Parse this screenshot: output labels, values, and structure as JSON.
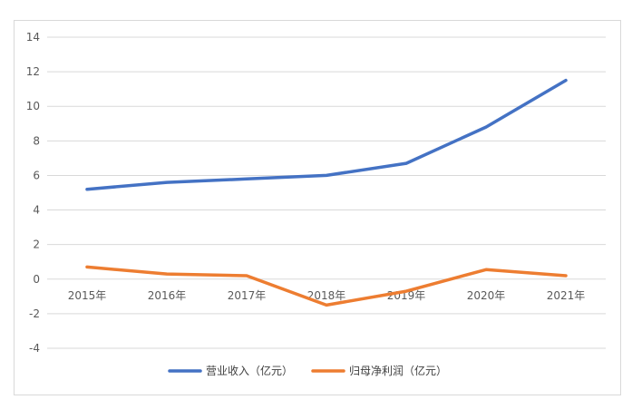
{
  "chart_data": {
    "type": "line",
    "categories": [
      "2015年",
      "2016年",
      "2017年",
      "2018年",
      "2019年",
      "2020年",
      "2021年"
    ],
    "series": [
      {
        "name": "营业收入（亿元）",
        "values": [
          5.2,
          5.6,
          5.8,
          6.0,
          6.7,
          8.8,
          11.5
        ],
        "color": "#4472c4"
      },
      {
        "name": "归母净利润（亿元）",
        "values": [
          0.7,
          0.3,
          0.2,
          -1.5,
          -0.7,
          0.55,
          0.2
        ],
        "color": "#ed7d31"
      }
    ],
    "ylim": [
      -4,
      14
    ],
    "yticks": [
      -4,
      -2,
      0,
      2,
      4,
      6,
      8,
      10,
      12,
      14
    ],
    "grid": true,
    "legend": "bottom"
  }
}
